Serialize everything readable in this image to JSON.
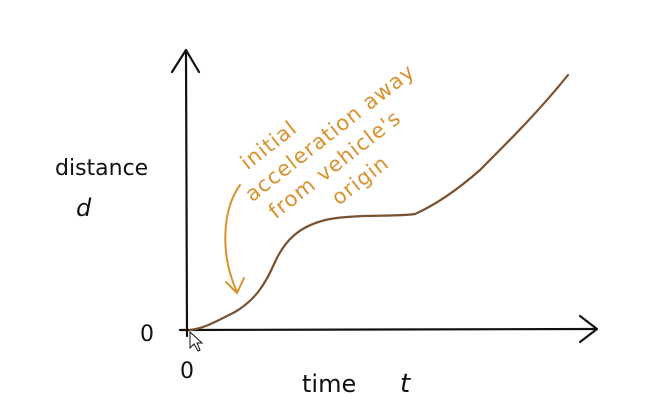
{
  "y_axis": {
    "label": "distance",
    "symbol": "d",
    "origin": "0"
  },
  "x_axis": {
    "label": "time",
    "symbol": "t",
    "origin": "0"
  },
  "annotation": {
    "lines": [
      "initial",
      "acceleration away",
      "from vehicle's",
      "origin"
    ]
  }
}
